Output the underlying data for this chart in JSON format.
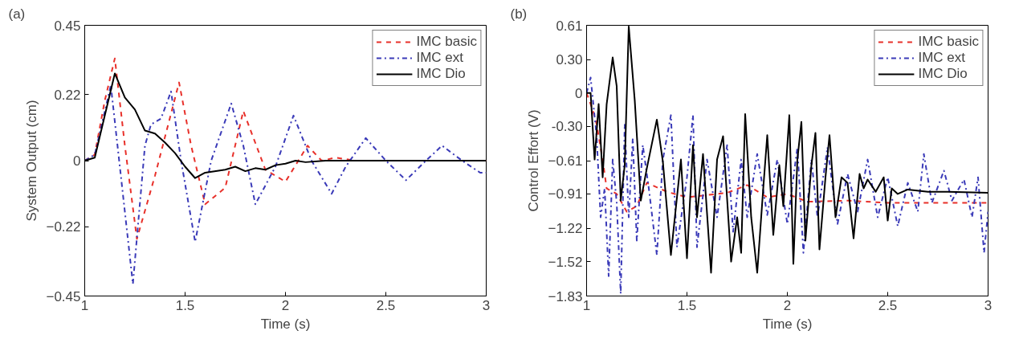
{
  "chart_data": [
    {
      "type": "line",
      "xlabel": "Time (s)",
      "ylabel": "System Output (cm)",
      "annotations": [
        "(a)"
      ],
      "xlim": [
        1,
        3
      ],
      "xticks": [
        1,
        1.5,
        2,
        2.5,
        3
      ],
      "ylim": [
        -0.45,
        0.45
      ],
      "yticks": [
        -0.45,
        -0.22,
        0,
        0.22,
        0.45
      ],
      "grid": false,
      "legend": "top right",
      "series": [
        {
          "name": "IMC basic",
          "color": "#e8302a",
          "line_style": "dashed",
          "x": [
            1,
            1.05,
            1.1,
            1.15,
            1.2,
            1.26,
            1.35,
            1.47,
            1.53,
            1.6,
            1.7,
            1.79,
            1.9,
            2.0,
            2.11,
            2.18,
            2.25,
            2.35,
            3
          ],
          "values": [
            0,
            0.02,
            0.2,
            0.34,
            0.05,
            -0.26,
            -0.05,
            0.26,
            0.05,
            -0.145,
            -0.09,
            0.165,
            -0.03,
            -0.07,
            0.05,
            0.0,
            0.01,
            0,
            0
          ]
        },
        {
          "name": "IMC ext",
          "color": "#3a3ab8",
          "line_style": "dashdot",
          "x": [
            1,
            1.05,
            1.13,
            1.18,
            1.24,
            1.3,
            1.33,
            1.38,
            1.43,
            1.48,
            1.55,
            1.63,
            1.73,
            1.79,
            1.85,
            1.95,
            2.04,
            2.13,
            2.23,
            2.3,
            2.4,
            2.5,
            2.6,
            2.7,
            2.78,
            2.88,
            2.97,
            3
          ],
          "values": [
            0,
            0.02,
            0.25,
            -0.05,
            -0.41,
            0.05,
            0.12,
            0.14,
            0.23,
            0.0,
            -0.27,
            0.0,
            0.19,
            0.05,
            -0.145,
            -0.02,
            0.15,
            0.0,
            -0.11,
            -0.02,
            0.075,
            0.0,
            -0.065,
            0.0,
            0.05,
            0.0,
            -0.04,
            -0.04
          ]
        },
        {
          "name": "IMC Dio",
          "color": "#000000",
          "line_style": "solid",
          "x": [
            1,
            1.05,
            1.1,
            1.15,
            1.2,
            1.25,
            1.3,
            1.35,
            1.4,
            1.45,
            1.5,
            1.55,
            1.6,
            1.7,
            1.75,
            1.8,
            1.85,
            1.9,
            1.95,
            2.0,
            2.05,
            2.1,
            2.2,
            2.3,
            3
          ],
          "values": [
            0,
            0.01,
            0.15,
            0.29,
            0.21,
            0.17,
            0.1,
            0.09,
            0.06,
            0.025,
            -0.02,
            -0.058,
            -0.04,
            -0.03,
            -0.02,
            -0.035,
            -0.025,
            -0.03,
            -0.015,
            -0.01,
            0,
            -0.005,
            0,
            0,
            0
          ]
        }
      ]
    },
    {
      "type": "line",
      "xlabel": "Time (s)",
      "ylabel": "Control Effort (V)",
      "annotations": [
        "(b)"
      ],
      "xlim": [
        1,
        3
      ],
      "xticks": [
        1,
        1.5,
        2,
        2.5,
        3
      ],
      "ylim": [
        -1.83,
        0.61
      ],
      "yticks": [
        -1.83,
        -1.52,
        -1.22,
        -0.91,
        -0.61,
        {
          "value": -0.3,
          "label": "-0.30"
        },
        0,
        {
          "value": 0.3,
          "label": "0.30"
        },
        0.61
      ],
      "grid": false,
      "legend": "top right",
      "series": [
        {
          "name": "IMC basic",
          "color": "#e8302a",
          "line_style": "dashed",
          "x": [
            1,
            1.03,
            1.05,
            1.08,
            1.1,
            1.15,
            1.2,
            1.25,
            1.3,
            1.4,
            1.5,
            1.7,
            1.8,
            1.9,
            2.0,
            2.1,
            2.3,
            2.5,
            3
          ],
          "values": [
            0,
            -0.15,
            -0.28,
            -0.6,
            -0.86,
            -0.91,
            -1.07,
            -1.02,
            -0.81,
            -0.89,
            -0.94,
            -0.9,
            -0.83,
            -0.94,
            -0.91,
            -0.98,
            -0.97,
            -0.99,
            -0.99
          ]
        },
        {
          "name": "IMC ext",
          "color": "#3a3ab8",
          "line_style": "dashdot",
          "x": [
            1,
            1.02,
            1.05,
            1.07,
            1.09,
            1.11,
            1.13,
            1.15,
            1.17,
            1.19,
            1.21,
            1.23,
            1.25,
            1.28,
            1.31,
            1.35,
            1.38,
            1.42,
            1.45,
            1.5,
            1.53,
            1.55,
            1.6,
            1.65,
            1.7,
            1.73,
            1.77,
            1.8,
            1.85,
            1.9,
            1.95,
            2.0,
            2.05,
            2.08,
            2.12,
            2.15,
            2.2,
            2.25,
            2.3,
            2.35,
            2.4,
            2.45,
            2.5,
            2.55,
            2.6,
            2.65,
            2.68,
            2.72,
            2.78,
            2.82,
            2.88,
            2.92,
            2.95,
            2.98,
            3
          ],
          "values": [
            0,
            0.14,
            -0.39,
            -1.12,
            -0.86,
            -1.65,
            -0.6,
            -0.99,
            -1.81,
            -0.28,
            -1.12,
            -0.41,
            -1.33,
            -0.47,
            -0.86,
            -1.46,
            -0.6,
            -0.2,
            -1.39,
            -0.76,
            -0.2,
            -1.39,
            -0.6,
            -1.12,
            -0.47,
            -1.25,
            -0.6,
            -1.12,
            -0.55,
            -1.1,
            -0.6,
            -1.18,
            -0.49,
            -1.44,
            -0.6,
            -1.12,
            -0.49,
            -1.18,
            -0.73,
            -1.07,
            -0.6,
            -1.12,
            -0.76,
            -1.2,
            -0.81,
            -1.07,
            -0.55,
            -0.99,
            -0.7,
            -0.97,
            -0.78,
            -1.12,
            -0.76,
            -1.44,
            -1.07
          ]
        },
        {
          "name": "IMC Dio",
          "color": "#000000",
          "line_style": "solid",
          "x": [
            1,
            1.02,
            1.04,
            1.06,
            1.08,
            1.1,
            1.13,
            1.15,
            1.17,
            1.19,
            1.21,
            1.24,
            1.27,
            1.3,
            1.35,
            1.38,
            1.42,
            1.47,
            1.5,
            1.53,
            1.55,
            1.58,
            1.62,
            1.65,
            1.68,
            1.72,
            1.75,
            1.77,
            1.79,
            1.82,
            1.85,
            1.88,
            1.9,
            1.93,
            1.96,
            1.98,
            2.01,
            2.03,
            2.05,
            2.07,
            2.09,
            2.12,
            2.14,
            2.16,
            2.19,
            2.21,
            2.24,
            2.27,
            2.3,
            2.33,
            2.36,
            2.38,
            2.4,
            2.44,
            2.48,
            2.5,
            2.52,
            2.55,
            2.6,
            2.7,
            2.8,
            3
          ],
          "values": [
            0,
            0,
            -0.6,
            -0.1,
            -0.76,
            -0.1,
            0.32,
            0.06,
            -0.97,
            -0.65,
            0.6,
            -0.07,
            -0.97,
            -0.68,
            -0.24,
            -0.62,
            -1.46,
            -0.6,
            -1.49,
            -0.47,
            -1.12,
            -0.55,
            -1.62,
            -0.6,
            -0.39,
            -1.52,
            -1.12,
            -1.44,
            -0.19,
            -1.12,
            -1.62,
            -0.86,
            -0.38,
            -1.28,
            -0.65,
            -1.02,
            -0.2,
            -1.54,
            -0.6,
            -0.26,
            -1.33,
            -0.65,
            -0.36,
            -1.41,
            -0.76,
            -0.38,
            -1.12,
            -0.76,
            -0.81,
            -1.31,
            -0.73,
            -0.86,
            -0.78,
            -0.89,
            -0.76,
            -1.15,
            -0.86,
            -0.91,
            -0.87,
            -0.89,
            -0.89,
            -0.9
          ]
        }
      ]
    }
  ]
}
